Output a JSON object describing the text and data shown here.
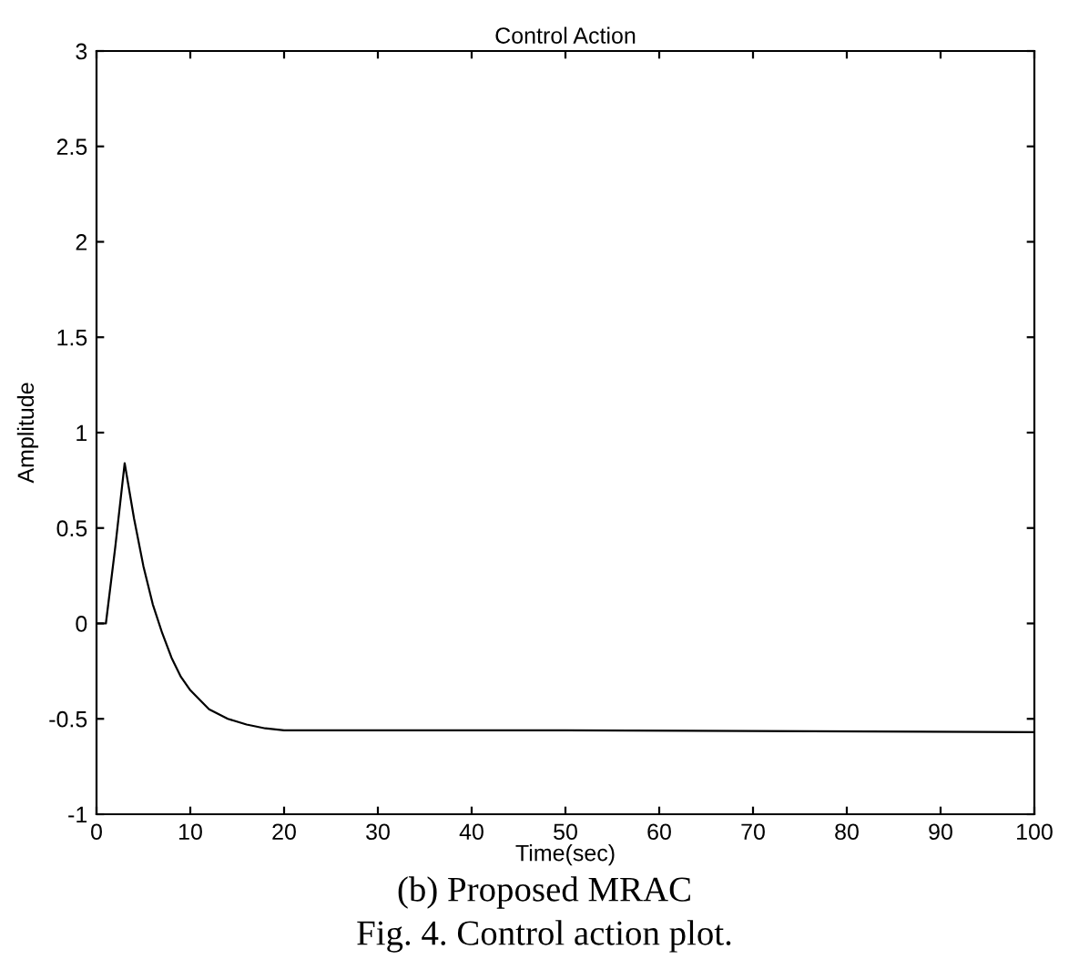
{
  "chart_data": {
    "type": "line",
    "title": "Control Action",
    "xlabel": "Time(sec)",
    "ylabel": "Amplitude",
    "x": [
      0,
      1,
      2,
      3,
      4,
      5,
      6,
      7,
      8,
      9,
      10,
      12,
      14,
      16,
      18,
      20,
      30,
      50,
      100
    ],
    "series": [
      {
        "color": "#000000",
        "values": [
          0,
          0,
          0.4,
          0.84,
          0.55,
          0.3,
          0.1,
          -0.05,
          -0.18,
          -0.28,
          -0.35,
          -0.45,
          -0.5,
          -0.53,
          -0.55,
          -0.56,
          -0.56,
          -0.56,
          -0.57
        ]
      }
    ],
    "xlim": [
      0,
      100
    ],
    "ylim": [
      -1,
      3
    ],
    "xticks": [
      0,
      10,
      20,
      30,
      40,
      50,
      60,
      70,
      80,
      90,
      100
    ],
    "yticks": [
      -1,
      -0.5,
      0,
      0.5,
      1,
      1.5,
      2,
      2.5,
      3
    ],
    "grid": false,
    "legend": false,
    "annotations": [
      "(b) Proposed MRAC",
      "Fig. 4. Control action plot."
    ]
  }
}
